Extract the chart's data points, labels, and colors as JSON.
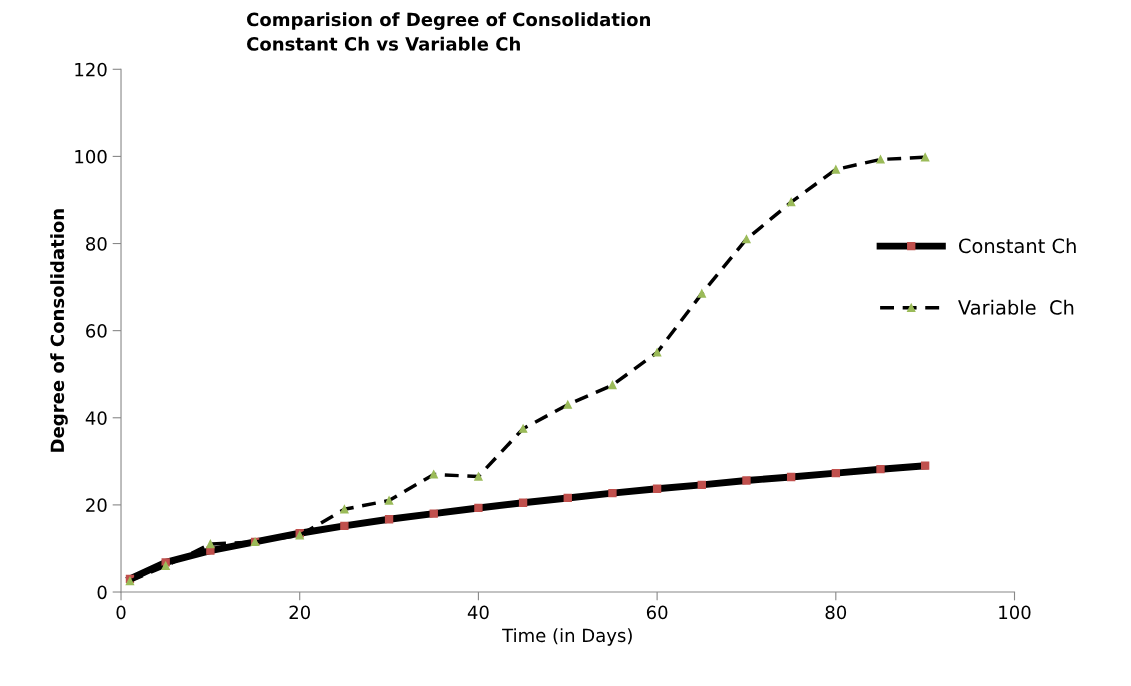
{
  "chart_data": {
    "type": "line",
    "title": "Comparision of Degree of Consolidation\nConstant Ch vs Variable Ch",
    "xlabel": "Time (in Days)",
    "ylabel": "Degree of Consolidation",
    "x": [
      1,
      5,
      10,
      15,
      20,
      25,
      30,
      35,
      40,
      45,
      50,
      55,
      60,
      65,
      70,
      75,
      80,
      85,
      90
    ],
    "series": [
      {
        "name": "Constant Ch",
        "color": "#c0504d",
        "marker": "square",
        "line_style": "solid",
        "values": [
          3,
          6.8,
          9.5,
          11.5,
          13.5,
          15.2,
          16.7,
          18,
          19.3,
          20.5,
          21.6,
          22.7,
          23.7,
          24.6,
          25.6,
          26.4,
          27.3,
          28.2,
          29
        ]
      },
      {
        "name": "Variable  Ch",
        "color": "#9bbb59",
        "marker": "triangle",
        "line_style": "dashed",
        "values": [
          2.5,
          6,
          11,
          11.5,
          13,
          19,
          21,
          27,
          26.5,
          37.5,
          43,
          47.5,
          55,
          68.5,
          81,
          89.5,
          97,
          99.3,
          99.8
        ]
      }
    ],
    "xlim": [
      0,
      100
    ],
    "xticks": [
      0,
      20,
      40,
      60,
      80,
      100
    ],
    "ylim": [
      0,
      120
    ],
    "yticks": [
      0,
      20,
      40,
      60,
      80,
      100,
      120
    ],
    "grid": false,
    "legend": "right"
  }
}
